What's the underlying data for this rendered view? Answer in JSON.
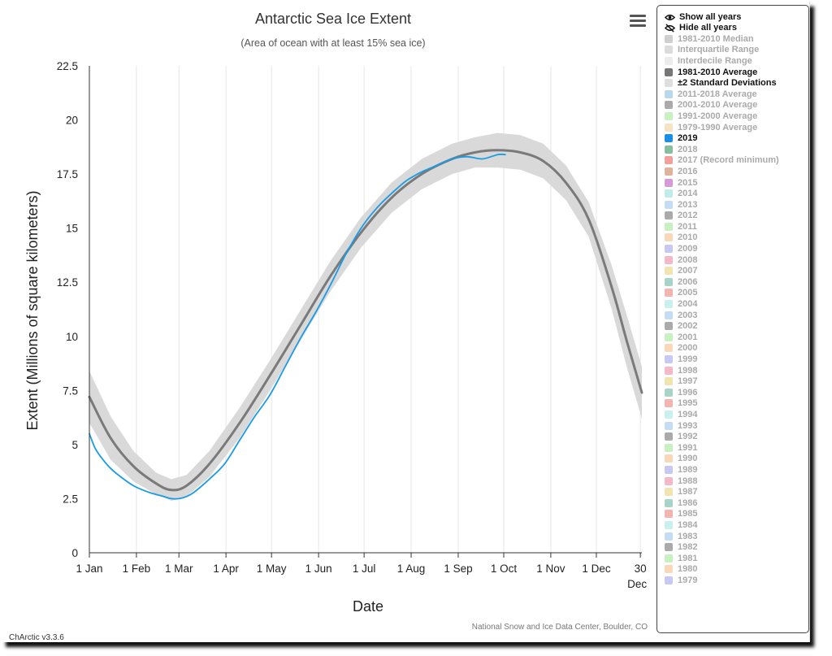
{
  "chart_data": {
    "type": "line",
    "title": "Antarctic Sea Ice Extent",
    "subtitle": "(Area of ocean with at least 15% sea ice)",
    "xlabel": "Date",
    "ylabel": "Extent (Millions of square kilometers)",
    "ylim": [
      0,
      22.5
    ],
    "xlim": [
      1,
      365
    ],
    "y_ticks": [
      "0",
      "2.5",
      "5",
      "7.5",
      "10",
      "12.5",
      "15",
      "17.5",
      "20",
      "22.5"
    ],
    "x_ticks": [
      {
        "day": 1,
        "label": "1 Jan"
      },
      {
        "day": 32,
        "label": "1 Feb"
      },
      {
        "day": 60,
        "label": "1 Mar"
      },
      {
        "day": 91,
        "label": "1 Apr"
      },
      {
        "day": 121,
        "label": "1 May"
      },
      {
        "day": 152,
        "label": "1 Jun"
      },
      {
        "day": 182,
        "label": "1 Jul"
      },
      {
        "day": 213,
        "label": "1 Aug"
      },
      {
        "day": 244,
        "label": "1 Sep"
      },
      {
        "day": 274,
        "label": "1 Oct"
      },
      {
        "day": 305,
        "label": "1 Nov"
      },
      {
        "day": 335,
        "label": "1 Dec"
      },
      {
        "day": 364,
        "label": "30",
        "label2": "Dec"
      }
    ],
    "grid": "vertical",
    "legend_position": "right",
    "series": [
      {
        "name": "1981-2010 Average",
        "color": "#7a7a7a",
        "x": [
          1,
          15,
          30,
          45,
          55,
          65,
          80,
          100,
          120,
          140,
          160,
          180,
          200,
          220,
          240,
          255,
          270,
          285,
          300,
          315,
          330,
          345,
          355,
          365
        ],
        "y": [
          7.2,
          5.3,
          4.0,
          3.2,
          2.9,
          3.1,
          4.1,
          6.0,
          8.2,
          10.5,
          12.8,
          14.8,
          16.4,
          17.5,
          18.2,
          18.5,
          18.6,
          18.5,
          18.1,
          17.1,
          15.4,
          12.3,
          9.8,
          7.4
        ]
      },
      {
        "name": "2019",
        "color": "#1a9be6",
        "x": [
          1,
          5,
          10,
          15,
          20,
          30,
          40,
          50,
          55,
          60,
          65,
          70,
          80,
          90,
          100,
          110,
          120,
          130,
          140,
          150,
          160,
          170,
          180,
          190,
          200,
          210,
          220,
          230,
          240,
          250,
          260,
          270,
          275
        ],
        "y": [
          5.5,
          4.8,
          4.3,
          3.9,
          3.6,
          3.1,
          2.8,
          2.6,
          2.5,
          2.5,
          2.6,
          2.8,
          3.4,
          4.1,
          5.2,
          6.3,
          7.3,
          8.6,
          9.9,
          11.1,
          12.4,
          13.8,
          15.0,
          15.9,
          16.6,
          17.2,
          17.6,
          17.9,
          18.2,
          18.3,
          18.2,
          18.4,
          18.4
        ]
      }
    ],
    "band": {
      "name": "±2 Standard Deviations",
      "color": "#d9d9d9",
      "x": [
        1,
        15,
        30,
        45,
        55,
        65,
        80,
        100,
        120,
        140,
        160,
        180,
        200,
        220,
        240,
        255,
        270,
        285,
        300,
        315,
        330,
        345,
        355,
        365
      ],
      "upper": [
        8.4,
        6.3,
        4.7,
        3.7,
        3.4,
        3.6,
        4.7,
        6.7,
        8.9,
        11.2,
        13.5,
        15.5,
        17.1,
        18.2,
        18.9,
        19.2,
        19.4,
        19.3,
        18.9,
        17.9,
        16.2,
        13.3,
        11.0,
        8.6
      ],
      "lower": [
        6.0,
        4.3,
        3.3,
        2.7,
        2.4,
        2.6,
        3.5,
        5.3,
        7.5,
        9.8,
        12.1,
        14.1,
        15.7,
        16.8,
        17.5,
        17.8,
        17.8,
        17.7,
        17.3,
        16.3,
        14.6,
        11.3,
        8.6,
        6.2
      ]
    },
    "credit": "National Snow and Ice Data Center, Boulder, CO",
    "version": "ChArctic v3.3.6"
  },
  "legend": {
    "show_all": "Show all years",
    "hide_all": "Hide all years",
    "items": [
      {
        "label": "1981-2010 Median",
        "color": "#cfcfcf",
        "active": false
      },
      {
        "label": "Interquartile Range",
        "color": "#dcdcdc",
        "active": false
      },
      {
        "label": "Interdecile Range",
        "color": "#ececec",
        "active": false
      },
      {
        "label": "1981-2010 Average",
        "color": "#777777",
        "active": true
      },
      {
        "label": "±2 Standard Deviations",
        "color": "#dedede",
        "active": true
      },
      {
        "label": "2011-2018 Average",
        "color": "#b8d8f0",
        "active": false
      },
      {
        "label": "2001-2010 Average",
        "color": "#aaaaaa",
        "active": false
      },
      {
        "label": "1991-2000 Average",
        "color": "#c8f0c0",
        "active": false
      },
      {
        "label": "1979-1990 Average",
        "color": "#f6e3c5",
        "active": false
      },
      {
        "label": "2019",
        "color": "#1a8fe6",
        "active": true
      },
      {
        "label": "2018",
        "color": "#86bfa0",
        "active": false
      },
      {
        "label": "2017 (Record minimum)",
        "color": "#f2a09c",
        "active": false
      },
      {
        "label": "2016",
        "color": "#e0b49c",
        "active": false
      },
      {
        "label": "2015",
        "color": "#d79ad8",
        "active": false
      },
      {
        "label": "2014",
        "color": "#bfece8",
        "active": false
      },
      {
        "label": "2013",
        "color": "#c4dcf4",
        "active": false
      },
      {
        "label": "2012",
        "color": "#aaaaaa",
        "active": false
      },
      {
        "label": "2011",
        "color": "#c8f0c0",
        "active": false
      },
      {
        "label": "2010",
        "color": "#f8d8b8",
        "active": false
      },
      {
        "label": "2009",
        "color": "#c8c8f4",
        "active": false
      },
      {
        "label": "2008",
        "color": "#f4b8c8",
        "active": false
      },
      {
        "label": "2007",
        "color": "#f0e4b0",
        "active": false
      },
      {
        "label": "2006",
        "color": "#a8d4c8",
        "active": false
      },
      {
        "label": "2005",
        "color": "#f4b4b0",
        "active": false
      },
      {
        "label": "2004",
        "color": "#c8f0ec",
        "active": false
      },
      {
        "label": "2003",
        "color": "#c4dcf4",
        "active": false
      },
      {
        "label": "2002",
        "color": "#aaaaaa",
        "active": false
      },
      {
        "label": "2001",
        "color": "#c8f0c0",
        "active": false
      },
      {
        "label": "2000",
        "color": "#f8d8b8",
        "active": false
      },
      {
        "label": "1999",
        "color": "#c8c8f4",
        "active": false
      },
      {
        "label": "1998",
        "color": "#f4b8c8",
        "active": false
      },
      {
        "label": "1997",
        "color": "#f0e4b0",
        "active": false
      },
      {
        "label": "1996",
        "color": "#a8d4c8",
        "active": false
      },
      {
        "label": "1995",
        "color": "#f4b4b0",
        "active": false
      },
      {
        "label": "1994",
        "color": "#c8f0ec",
        "active": false
      },
      {
        "label": "1993",
        "color": "#c4dcf4",
        "active": false
      },
      {
        "label": "1992",
        "color": "#aaaaaa",
        "active": false
      },
      {
        "label": "1991",
        "color": "#c8f0c0",
        "active": false
      },
      {
        "label": "1990",
        "color": "#f8d8b8",
        "active": false
      },
      {
        "label": "1989",
        "color": "#c8c8f4",
        "active": false
      },
      {
        "label": "1988",
        "color": "#f4b8c8",
        "active": false
      },
      {
        "label": "1987",
        "color": "#f0e4b0",
        "active": false
      },
      {
        "label": "1986",
        "color": "#a8d4c8",
        "active": false
      },
      {
        "label": "1985",
        "color": "#f4b4b0",
        "active": false
      },
      {
        "label": "1984",
        "color": "#c8f0ec",
        "active": false
      },
      {
        "label": "1983",
        "color": "#c4dcf4",
        "active": false
      },
      {
        "label": "1982",
        "color": "#aaaaaa",
        "active": false
      },
      {
        "label": "1981",
        "color": "#c8f0c0",
        "active": false
      },
      {
        "label": "1980",
        "color": "#f8d8b8",
        "active": false
      },
      {
        "label": "1979",
        "color": "#c8c8f4",
        "active": false
      }
    ]
  },
  "menu": {
    "icon": "hamburger-menu-icon"
  }
}
